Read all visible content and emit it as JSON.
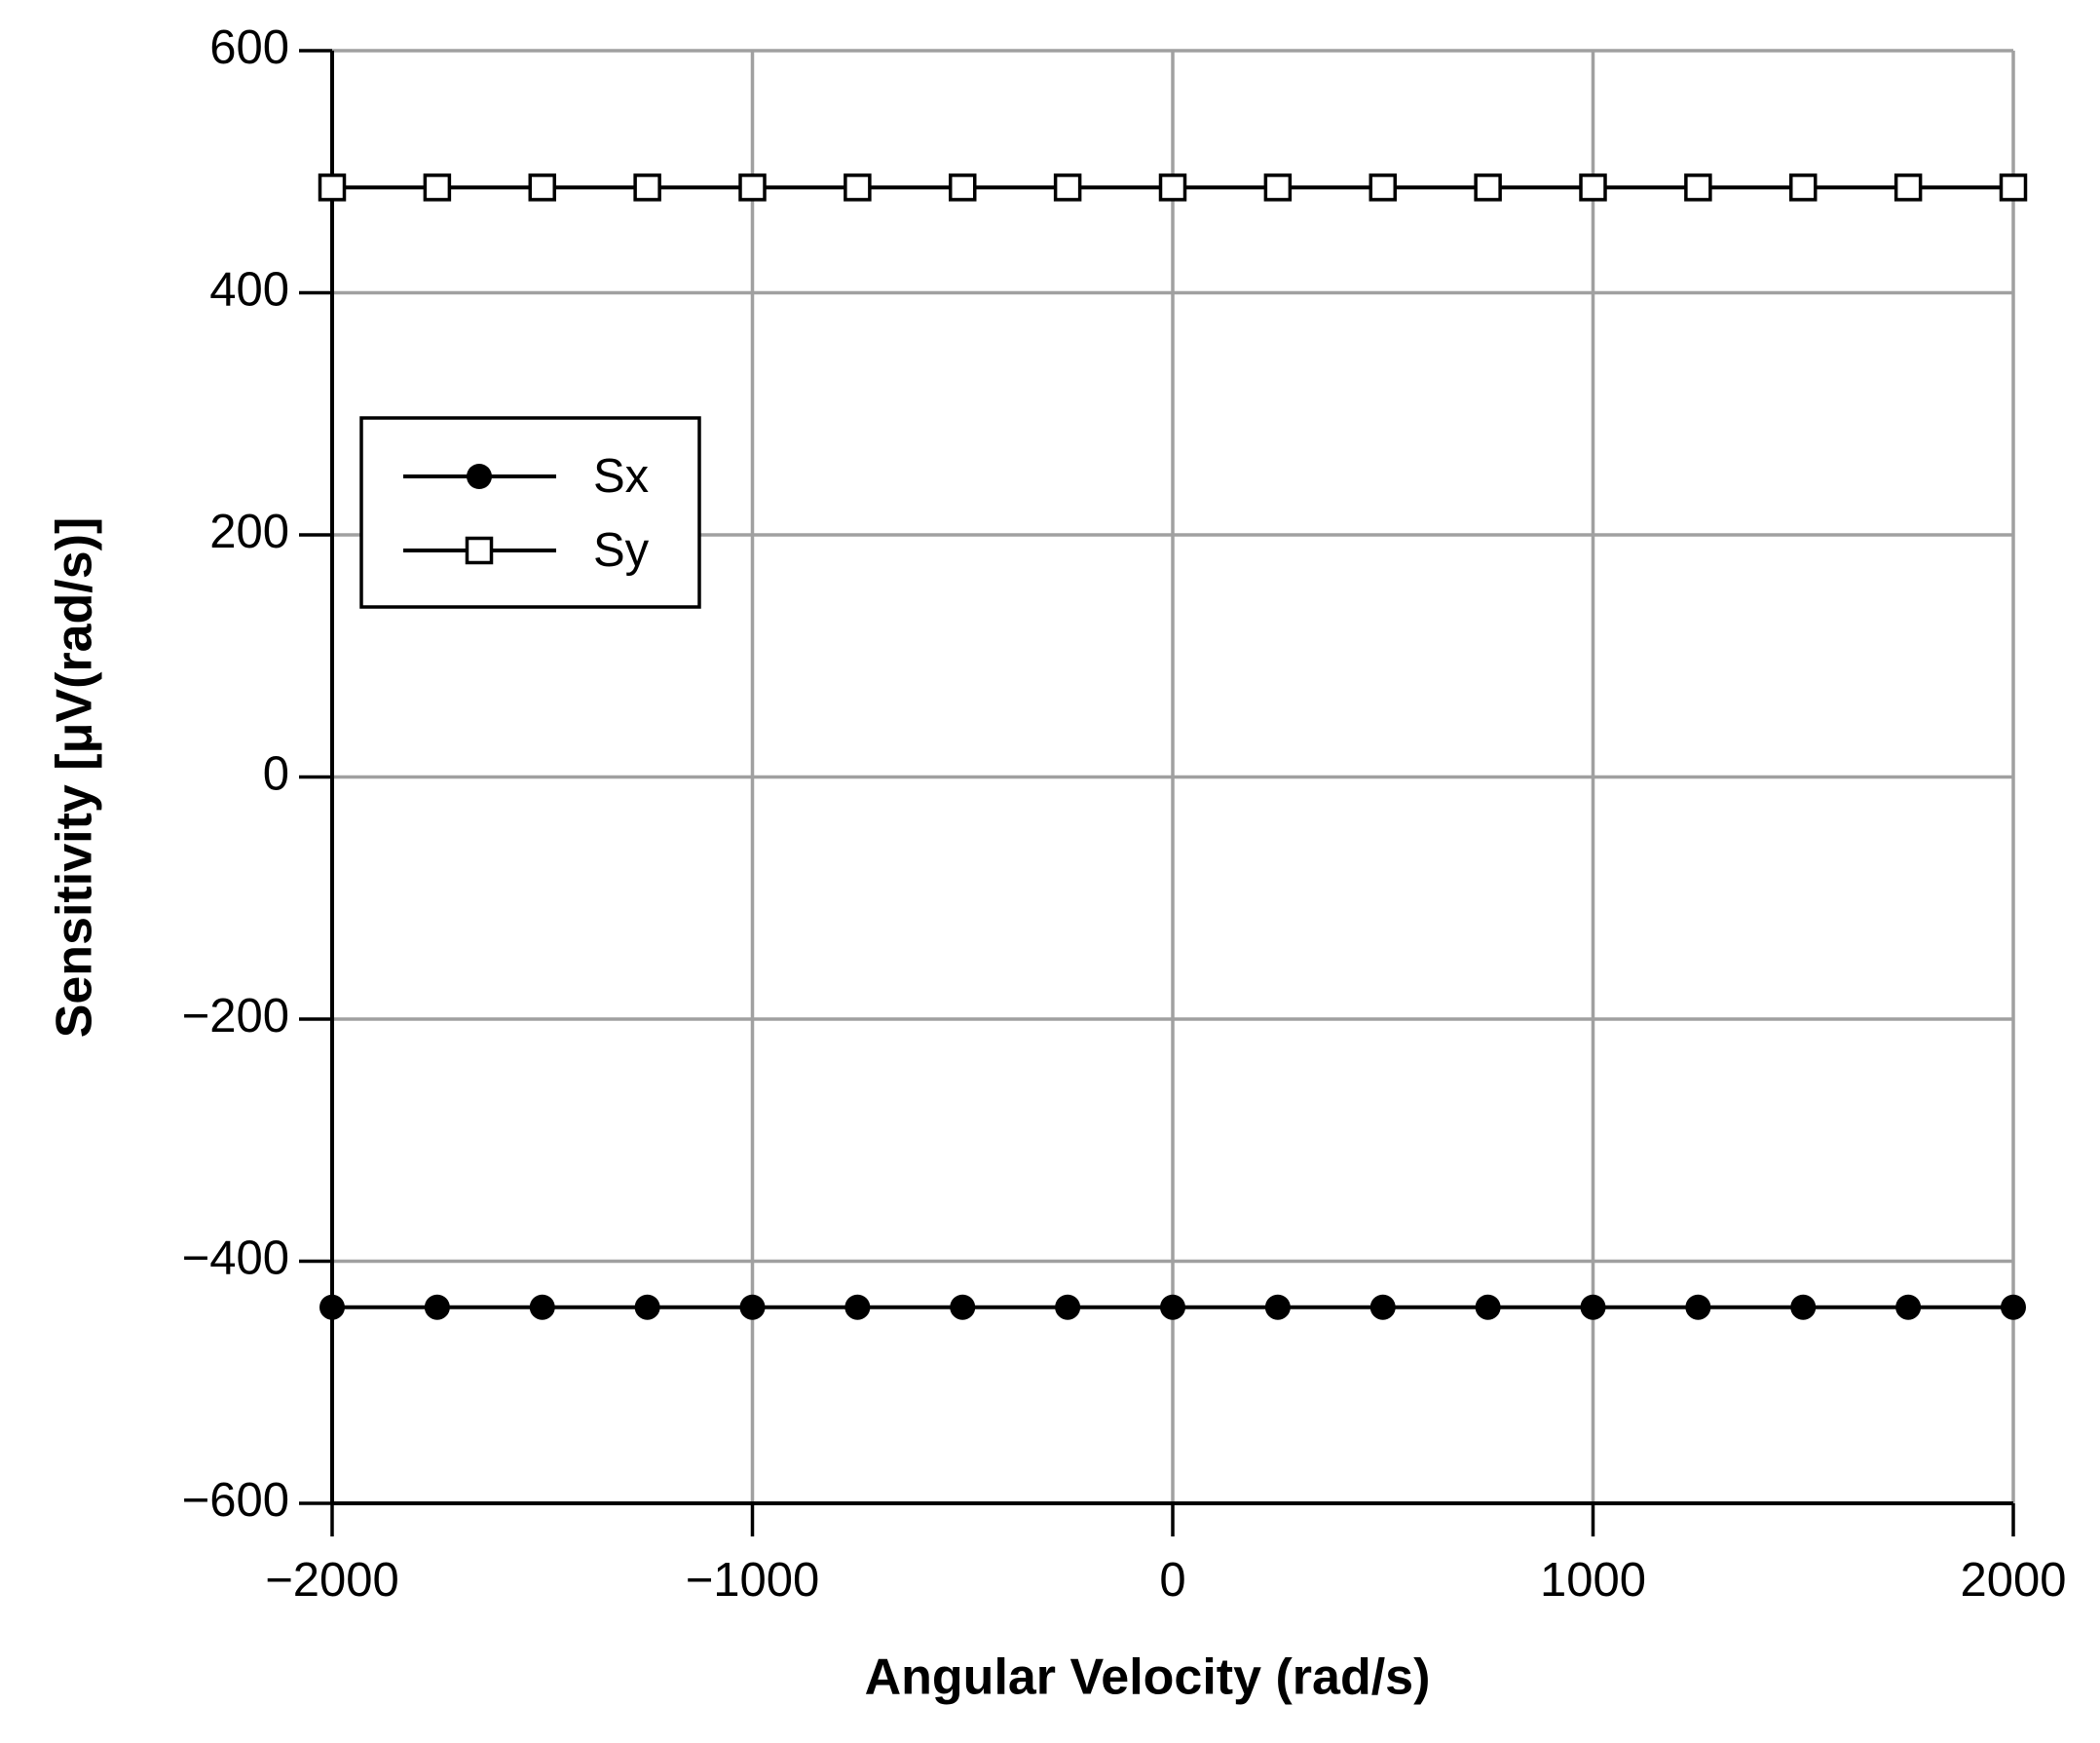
{
  "chart_data": {
    "type": "line",
    "xlabel": "Angular Velocity (rad/s)",
    "ylabel": "Sensitivity [μV(rad/s)]",
    "x": [
      -2000,
      -1750,
      -1500,
      -1250,
      -1000,
      -750,
      -500,
      -250,
      0,
      250,
      500,
      750,
      1000,
      1250,
      1500,
      1750,
      2000
    ],
    "series": [
      {
        "name": "Sx",
        "color": "#000000",
        "marker": "circle",
        "values": [
          -438,
          -438,
          -438,
          -438,
          -438,
          -438,
          -438,
          -438,
          -438,
          -438,
          -438,
          -438,
          -438,
          -438,
          -438,
          -438,
          -438
        ]
      },
      {
        "name": "Sy",
        "color": "#000000",
        "marker": "square",
        "values": [
          487,
          487,
          487,
          487,
          487,
          487,
          487,
          487,
          487,
          487,
          487,
          487,
          487,
          487,
          487,
          487,
          487
        ]
      }
    ],
    "xlim": [
      -2000,
      2000
    ],
    "xticks": [
      {
        "value": -2000,
        "label": "−2000"
      },
      {
        "value": -1000,
        "label": "−1000"
      },
      0,
      1000,
      2000
    ],
    "ylim": [
      -600,
      600
    ],
    "yticks": [
      {
        "value": -600,
        "label": "−600"
      },
      {
        "value": -400,
        "label": "−400"
      },
      {
        "value": -200,
        "label": "−200"
      },
      0,
      200,
      400,
      600
    ],
    "grid": true,
    "legend": "upper left"
  }
}
